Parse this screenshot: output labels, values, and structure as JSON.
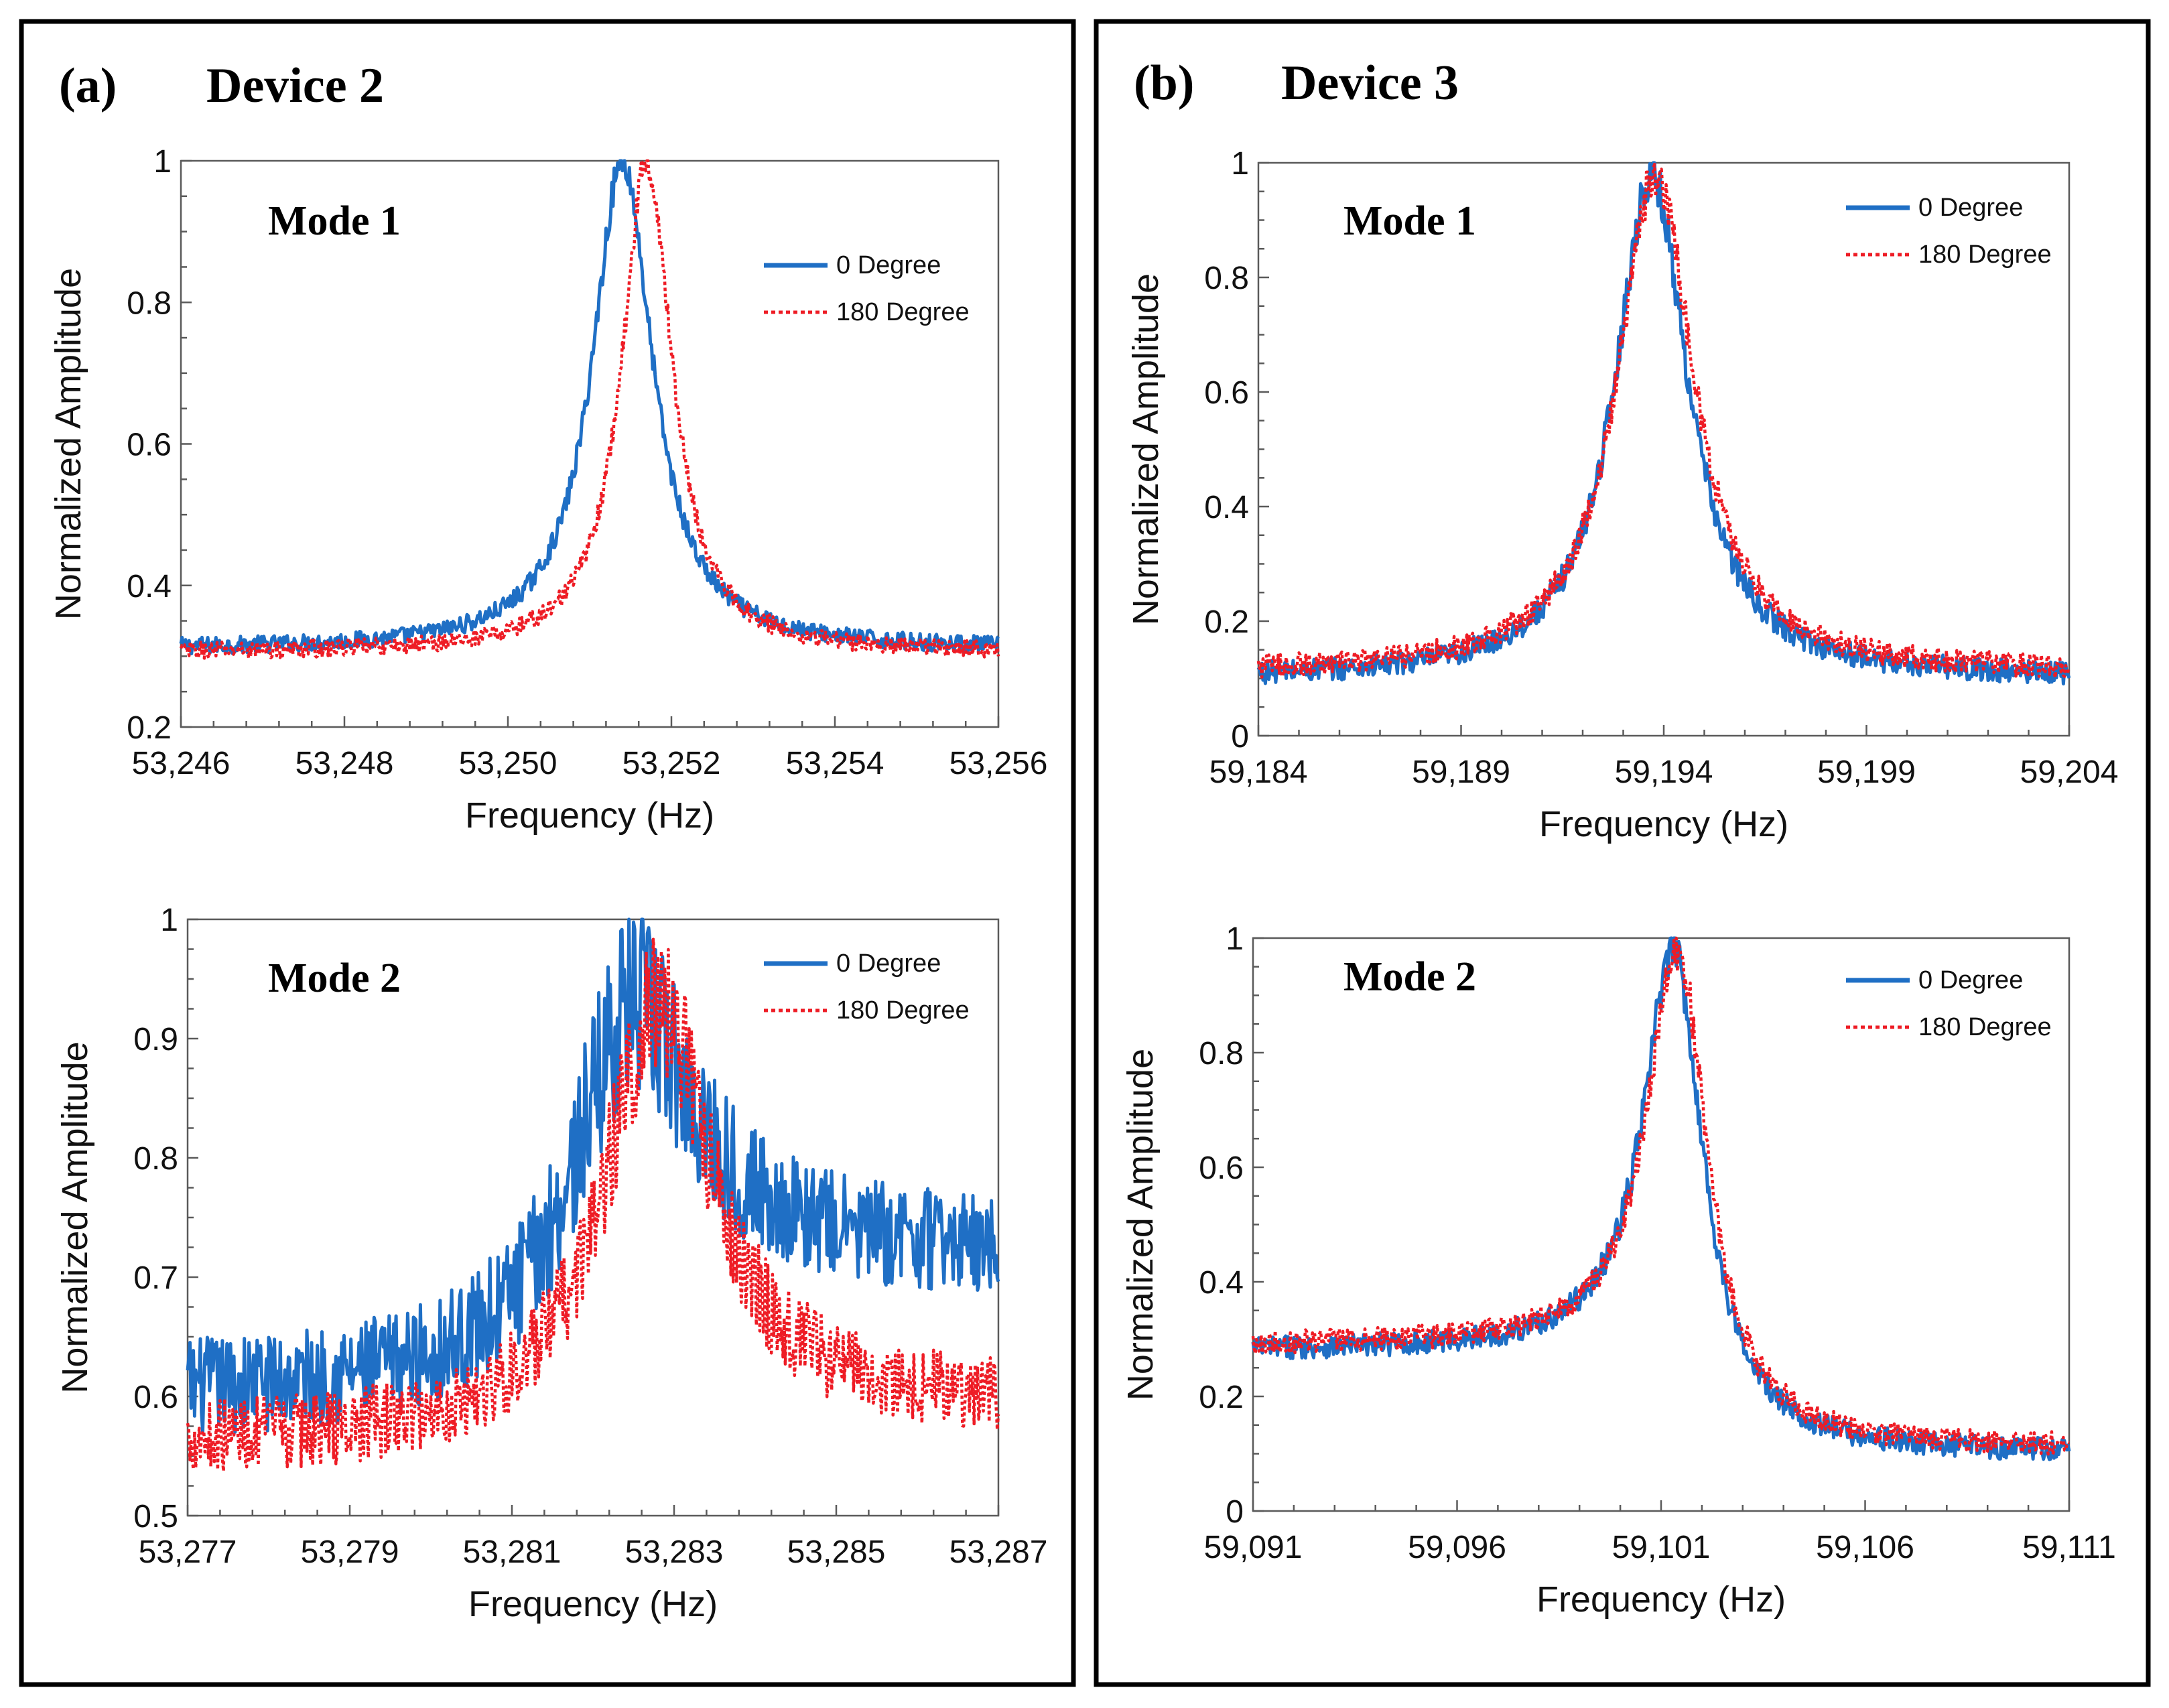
{
  "panels": [
    {
      "label": "(a)",
      "title": "Device 2"
    },
    {
      "label": "(b)",
      "title": "Device 3"
    }
  ],
  "colors": {
    "series_0deg": "#1f6fc5",
    "series_180deg": "#ee1c25",
    "frame": "#000000"
  },
  "chart_data": [
    {
      "type": "line",
      "panel": "(a)",
      "title": "Mode 1",
      "xlabel": "Frequency (Hz)",
      "ylabel": "Normalized Amplitude",
      "xlim": [
        53246,
        53256
      ],
      "ylim": [
        0.2,
        1
      ],
      "xticks": [
        53246,
        53248,
        53250,
        53252,
        53254,
        53256
      ],
      "xtick_labels": [
        "53,246",
        "53,248",
        "53,250",
        "53,252",
        "53,254",
        "53,256"
      ],
      "yticks": [
        0.2,
        0.4,
        0.6,
        0.8,
        1
      ],
      "ytick_labels": [
        "0.2",
        "0.4",
        "0.6",
        "0.8",
        "1"
      ],
      "legend": "top-right",
      "series": [
        {
          "name": "0 Degree",
          "style": "solid",
          "peak_x": 53251.4,
          "peak_y": 1.0,
          "baseline": 0.31,
          "width": 0.9,
          "noise": 0.012
        },
        {
          "name": "180 Degree",
          "style": "dotted",
          "peak_x": 53251.7,
          "peak_y": 1.0,
          "baseline": 0.305,
          "width": 0.75,
          "noise": 0.012
        }
      ]
    },
    {
      "type": "line",
      "panel": "(a)",
      "title": "Mode 2",
      "xlabel": "Frequency (Hz)",
      "ylabel": "Normalized Amplitude",
      "xlim": [
        53277,
        53287
      ],
      "ylim": [
        0.5,
        1
      ],
      "xticks": [
        53277,
        53279,
        53281,
        53283,
        53285,
        53287
      ],
      "xtick_labels": [
        "53,277",
        "53,279",
        "53,281",
        "53,283",
        "53,285",
        "53,287"
      ],
      "yticks": [
        0.5,
        0.6,
        0.7,
        0.8,
        0.9,
        1
      ],
      "ytick_labels": [
        "0.5",
        "0.6",
        "0.7",
        "0.8",
        "0.9",
        "1"
      ],
      "legend": "top-right",
      "series": [
        {
          "name": "0 Degree",
          "style": "solid",
          "peak_x": 53282.5,
          "peak_y": 0.93,
          "baseline": 0.6,
          "right_baseline": 0.72,
          "width": 1.8,
          "noise": 0.04
        },
        {
          "name": "180 Degree",
          "style": "dotted",
          "peak_x": 53282.8,
          "peak_y": 0.93,
          "baseline": 0.56,
          "right_baseline": 0.59,
          "width": 1.6,
          "noise": 0.03
        }
      ]
    },
    {
      "type": "line",
      "panel": "(b)",
      "title": "Mode 1",
      "xlabel": "Frequency (Hz)",
      "ylabel": "Normalized Amplitude",
      "xlim": [
        59184,
        59204
      ],
      "ylim": [
        0,
        1
      ],
      "xticks": [
        59184,
        59189,
        59194,
        59199,
        59204
      ],
      "xtick_labels": [
        "59,184",
        "59,189",
        "59,194",
        "59,199",
        "59,204"
      ],
      "yticks": [
        0,
        0.2,
        0.4,
        0.6,
        0.8,
        1
      ],
      "ytick_labels": [
        "0",
        "0.2",
        "0.4",
        "0.6",
        "0.8",
        "1"
      ],
      "legend": "top-right",
      "series": [
        {
          "name": "0 Degree",
          "style": "solid",
          "peak_x": 59193.7,
          "peak_y": 0.98,
          "baseline": 0.1,
          "width": 2.2,
          "noise": 0.02
        },
        {
          "name": "180 Degree",
          "style": "dotted",
          "peak_x": 59193.8,
          "peak_y": 0.98,
          "baseline": 0.11,
          "width": 2.3,
          "noise": 0.02
        }
      ]
    },
    {
      "type": "line",
      "panel": "(b)",
      "title": "Mode 2",
      "xlabel": "Frequency (Hz)",
      "ylabel": "Normalized Amplitude",
      "xlim": [
        59091,
        59111
      ],
      "ylim": [
        0,
        1
      ],
      "xticks": [
        59091,
        59096,
        59101,
        59106,
        59111
      ],
      "xtick_labels": [
        "59,091",
        "59,096",
        "59,101",
        "59,106",
        "59,111"
      ],
      "yticks": [
        0,
        0.2,
        0.4,
        0.6,
        0.8,
        1
      ],
      "ytick_labels": [
        "0",
        "0.2",
        "0.4",
        "0.6",
        "0.8",
        "1"
      ],
      "legend": "top-right",
      "series": [
        {
          "name": "0 Degree",
          "style": "solid",
          "peak_x": 59101.3,
          "peak_y": 0.98,
          "baseline": 0.28,
          "right_baseline": 0.1,
          "width": 1.8,
          "noise": 0.02
        },
        {
          "name": "180 Degree",
          "style": "dotted",
          "peak_x": 59101.4,
          "peak_y": 0.98,
          "baseline": 0.29,
          "right_baseline": 0.11,
          "width": 1.8,
          "noise": 0.02
        }
      ]
    }
  ]
}
